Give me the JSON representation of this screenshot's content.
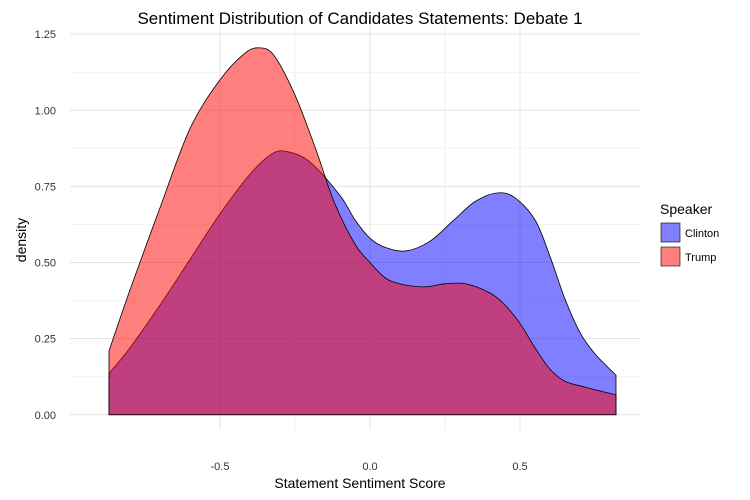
{
  "chart_data": {
    "type": "area",
    "title": "Sentiment Distribution of Candidates Statements: Debate 1",
    "xlabel": "Statement Sentiment Score",
    "ylabel": "density",
    "xlim": [
      -1.0,
      0.9
    ],
    "ylim": [
      -0.05,
      1.28
    ],
    "x_ticks": [
      -0.5,
      0.0,
      0.5
    ],
    "x_tick_labels": [
      "-0.5",
      "0.0",
      "0.5"
    ],
    "y_ticks": [
      0.0,
      0.25,
      0.5,
      0.75,
      1.0,
      1.25
    ],
    "y_tick_labels": [
      "0.00",
      "0.25",
      "0.50",
      "0.75",
      "1.00",
      "1.25"
    ],
    "grid": true,
    "legend": {
      "title": "Speaker",
      "position": "right"
    },
    "series": [
      {
        "name": "Clinton",
        "color": "#0000ff",
        "points": [
          [
            -0.87,
            0.135
          ],
          [
            -0.8,
            0.22
          ],
          [
            -0.7,
            0.36
          ],
          [
            -0.6,
            0.51
          ],
          [
            -0.5,
            0.66
          ],
          [
            -0.4,
            0.79
          ],
          [
            -0.33,
            0.855
          ],
          [
            -0.28,
            0.865
          ],
          [
            -0.2,
            0.83
          ],
          [
            -0.1,
            0.72
          ],
          [
            -0.05,
            0.64
          ],
          [
            0.0,
            0.58
          ],
          [
            0.05,
            0.55
          ],
          [
            0.12,
            0.538
          ],
          [
            0.2,
            0.57
          ],
          [
            0.28,
            0.64
          ],
          [
            0.35,
            0.7
          ],
          [
            0.42,
            0.728
          ],
          [
            0.48,
            0.715
          ],
          [
            0.55,
            0.64
          ],
          [
            0.6,
            0.52
          ],
          [
            0.65,
            0.38
          ],
          [
            0.7,
            0.27
          ],
          [
            0.75,
            0.2
          ],
          [
            0.82,
            0.13
          ]
        ]
      },
      {
        "name": "Trump",
        "color": "#ff0000",
        "points": [
          [
            -0.87,
            0.21
          ],
          [
            -0.8,
            0.41
          ],
          [
            -0.7,
            0.68
          ],
          [
            -0.6,
            0.94
          ],
          [
            -0.5,
            1.1
          ],
          [
            -0.42,
            1.185
          ],
          [
            -0.37,
            1.205
          ],
          [
            -0.32,
            1.18
          ],
          [
            -0.25,
            1.05
          ],
          [
            -0.18,
            0.87
          ],
          [
            -0.12,
            0.7
          ],
          [
            -0.05,
            0.56
          ],
          [
            0.0,
            0.5
          ],
          [
            0.05,
            0.45
          ],
          [
            0.1,
            0.43
          ],
          [
            0.18,
            0.42
          ],
          [
            0.25,
            0.43
          ],
          [
            0.32,
            0.43
          ],
          [
            0.4,
            0.4
          ],
          [
            0.45,
            0.36
          ],
          [
            0.5,
            0.3
          ],
          [
            0.55,
            0.22
          ],
          [
            0.6,
            0.15
          ],
          [
            0.65,
            0.11
          ],
          [
            0.72,
            0.09
          ],
          [
            0.82,
            0.065
          ]
        ]
      }
    ]
  }
}
